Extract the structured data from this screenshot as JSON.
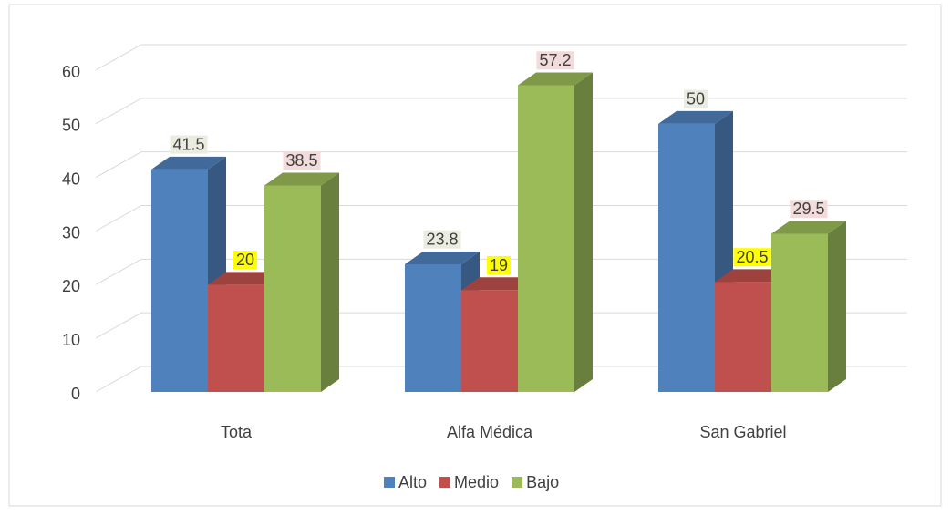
{
  "chart_data": {
    "type": "bar3d",
    "categories": [
      "Tota",
      "Alfa Médica",
      "San Gabriel"
    ],
    "series": [
      {
        "name": "Alto",
        "color": "#4f81bd",
        "values": [
          41.5,
          23.8,
          50
        ]
      },
      {
        "name": "Medio",
        "color": "#c0504d",
        "values": [
          20,
          19,
          20.5
        ]
      },
      {
        "name": "Bajo",
        "color": "#9bbb59",
        "values": [
          38.5,
          57.2,
          29.5
        ]
      }
    ],
    "label_colors": [
      "#e9ecdf",
      "#ffff00",
      "#f2dcdb"
    ],
    "ylim": [
      0,
      60
    ],
    "yticks": [
      0,
      10,
      20,
      30,
      40,
      50,
      60
    ],
    "grid": true,
    "legend": "bottom"
  }
}
